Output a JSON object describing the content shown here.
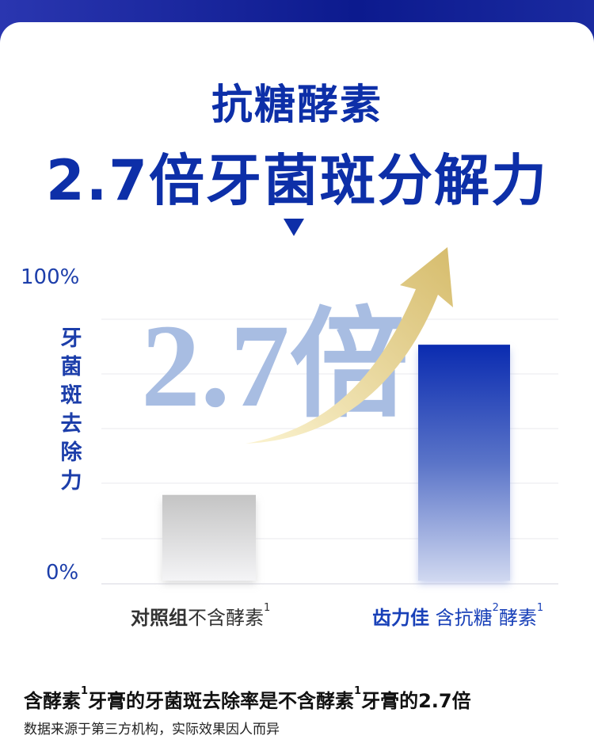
{
  "title_line1": "抗糖酵素",
  "title_line2": "2.7倍牙菌斑分解力",
  "chart_data": {
    "type": "bar",
    "ylabel": "牙菌斑去除力",
    "ylim": [
      0,
      100
    ],
    "yticks": [
      "100%",
      "0%"
    ],
    "grid": true,
    "categories": [
      {
        "bold": "对照组",
        "rest": "不含酵素",
        "sup": "1"
      },
      {
        "bold": "齿力佳",
        "rest": " 含抗糖",
        "sup": "2",
        "rest2": "酵素",
        "sup2": "1"
      }
    ],
    "values": [
      29,
      78
    ],
    "annotation": "2.7倍",
    "colors": {
      "control": "#c8c8c8",
      "product": "#0a2bb0",
      "arrow": "#d8c070",
      "watermark": "#a8bde2"
    }
  },
  "footer": {
    "line1_a": "含酵素",
    "line1_sup1": "1",
    "line1_b": "牙膏的牙菌斑去除率是不含酵素",
    "line1_sup2": "1",
    "line1_c": "牙膏的2.7倍",
    "line2": "数据来源于第三方机构，实际效果因人而异"
  }
}
